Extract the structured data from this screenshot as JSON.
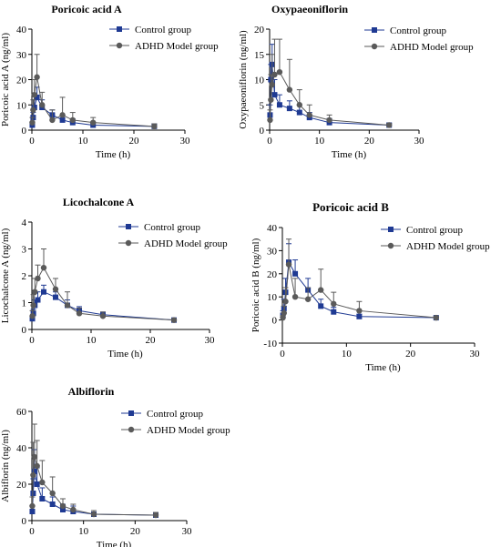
{
  "legend": {
    "control": "Control group",
    "model": "ADHD Model group"
  },
  "colors": {
    "control": "#1f3a93",
    "model": "#5a5a5a",
    "axis": "#000000"
  },
  "chart_data": [
    {
      "id": "poricoic-a",
      "type": "line",
      "title": "Poricoic acid A",
      "xlabel": "Time (h)",
      "ylabel": "Poricoic acid A (ng/ml)",
      "xlim": [
        0,
        30
      ],
      "ylim": [
        0,
        40
      ],
      "xticks": [
        0,
        10,
        20,
        30
      ],
      "yticks": [
        0,
        10,
        20,
        30,
        40
      ],
      "series": [
        {
          "name": "Control group",
          "x": [
            0.083,
            0.25,
            0.5,
            1,
            2,
            4,
            6,
            8,
            12,
            24
          ],
          "y": [
            2,
            5,
            9,
            13,
            9,
            6,
            4,
            3,
            2,
            1.5
          ],
          "err": [
            1,
            2,
            3,
            4,
            3,
            2,
            2,
            1.5,
            1,
            1
          ]
        },
        {
          "name": "ADHD Model group",
          "x": [
            0.083,
            0.25,
            0.5,
            1,
            2,
            4,
            6,
            8,
            12,
            24
          ],
          "y": [
            3,
            8,
            14,
            21,
            10,
            4,
            6,
            4,
            3,
            1.5
          ],
          "err": [
            2,
            4,
            6,
            9,
            5,
            4,
            7,
            3,
            2,
            1
          ]
        }
      ]
    },
    {
      "id": "oxypaeoniflorin",
      "type": "line",
      "title": "Oxypaeoniflorin",
      "xlabel": "Time (h)",
      "ylabel": "Oxypaeoniflorin (ng/ml)",
      "xlim": [
        0,
        30
      ],
      "ylim": [
        0,
        20
      ],
      "xticks": [
        0,
        10,
        20,
        30
      ],
      "yticks": [
        0,
        5,
        10,
        15,
        20
      ],
      "series": [
        {
          "name": "Control group",
          "x": [
            0.083,
            0.25,
            0.5,
            1,
            2,
            4,
            6,
            8,
            12,
            24
          ],
          "y": [
            3,
            10,
            13,
            7,
            5,
            4.3,
            3.5,
            2.5,
            1.5,
            1
          ],
          "err": [
            2,
            3,
            4,
            3,
            2,
            1.5,
            1.5,
            1,
            0.8,
            0.3
          ]
        },
        {
          "name": "ADHD Model group",
          "x": [
            0.083,
            0.25,
            0.5,
            1,
            2,
            4,
            6,
            8,
            12,
            24
          ],
          "y": [
            2,
            6,
            9,
            11,
            11.5,
            8,
            5,
            3,
            2,
            1
          ],
          "err": [
            2,
            5,
            6,
            7,
            6.5,
            6,
            3,
            2,
            1,
            0.3
          ]
        }
      ]
    },
    {
      "id": "licochalcone-a",
      "type": "line",
      "title": "Licochalcone A",
      "xlabel": "Time (h)",
      "ylabel": "Licochalcone A (ng/ml)",
      "xlim": [
        0,
        30
      ],
      "ylim": [
        0,
        4
      ],
      "xticks": [
        0,
        10,
        20,
        30
      ],
      "yticks": [
        0,
        1,
        2,
        3,
        4
      ],
      "series": [
        {
          "name": "Control group",
          "x": [
            0.083,
            0.25,
            0.5,
            1,
            2,
            4,
            6,
            8,
            12,
            24
          ],
          "y": [
            0.4,
            0.6,
            0.9,
            1.1,
            1.4,
            1.2,
            0.9,
            0.7,
            0.55,
            0.35
          ],
          "err": [
            0.1,
            0.15,
            0.2,
            0.3,
            0.25,
            0.2,
            0.2,
            0.15,
            0.1,
            0.05
          ]
        },
        {
          "name": "ADHD Model group",
          "x": [
            0.083,
            0.25,
            0.5,
            1,
            2,
            4,
            6,
            8,
            12,
            24
          ],
          "y": [
            0.5,
            0.9,
            1.4,
            1.9,
            2.3,
            1.5,
            0.9,
            0.6,
            0.5,
            0.35
          ],
          "err": [
            0.2,
            0.4,
            0.5,
            0.5,
            0.7,
            0.4,
            0.5,
            0.2,
            0.15,
            0.05
          ]
        }
      ]
    },
    {
      "id": "poricoic-b",
      "type": "line",
      "title": "Poricoic acid B",
      "xlabel": "Time (h)",
      "ylabel": "Poricoic acid B (ng/ml)",
      "xlim": [
        0,
        30
      ],
      "ylim": [
        -10,
        40
      ],
      "xticks": [
        0,
        10,
        20,
        30
      ],
      "yticks": [
        -10,
        0,
        10,
        20,
        30,
        40
      ],
      "series": [
        {
          "name": "Control group",
          "x": [
            0.083,
            0.25,
            0.5,
            1,
            2,
            4,
            6,
            8,
            12,
            24
          ],
          "y": [
            2,
            5,
            12,
            25,
            20,
            13,
            6,
            3.5,
            1.5,
            1
          ],
          "err": [
            2,
            4,
            6,
            8,
            6,
            5,
            3,
            2,
            1,
            0.5
          ]
        },
        {
          "name": "ADHD Model group",
          "x": [
            0.083,
            0.25,
            0.5,
            1,
            2,
            4,
            6,
            8,
            12,
            24
          ],
          "y": [
            1,
            3,
            8,
            24,
            10,
            9,
            13,
            7,
            4,
            1
          ],
          "err": [
            1,
            3,
            6,
            11,
            8,
            5,
            9,
            5,
            4,
            0.5
          ]
        }
      ]
    },
    {
      "id": "albiflorin",
      "type": "line",
      "title": "Albiflorin",
      "xlabel": "Time (h)",
      "ylabel": "Albiflorin (ng/ml)",
      "xlim": [
        0,
        30
      ],
      "ylim": [
        0,
        60
      ],
      "xticks": [
        0,
        10,
        20,
        30
      ],
      "yticks": [
        0,
        20,
        40,
        60
      ],
      "series": [
        {
          "name": "Control group",
          "x": [
            0.083,
            0.25,
            0.5,
            1,
            2,
            4,
            6,
            8,
            12,
            24
          ],
          "y": [
            5,
            15,
            27,
            20,
            12,
            9,
            6,
            5,
            3.5,
            3
          ],
          "err": [
            3,
            8,
            12,
            9,
            6,
            4,
            3,
            3,
            2,
            1.5
          ]
        },
        {
          "name": "ADHD Model group",
          "x": [
            0.083,
            0.25,
            0.5,
            1,
            2,
            4,
            6,
            8,
            12,
            24
          ],
          "y": [
            8,
            25,
            35,
            30,
            21,
            15,
            8,
            6,
            3.5,
            3
          ],
          "err": [
            5,
            18,
            18,
            14,
            12,
            9,
            4,
            3,
            2,
            1.5
          ]
        }
      ]
    }
  ]
}
